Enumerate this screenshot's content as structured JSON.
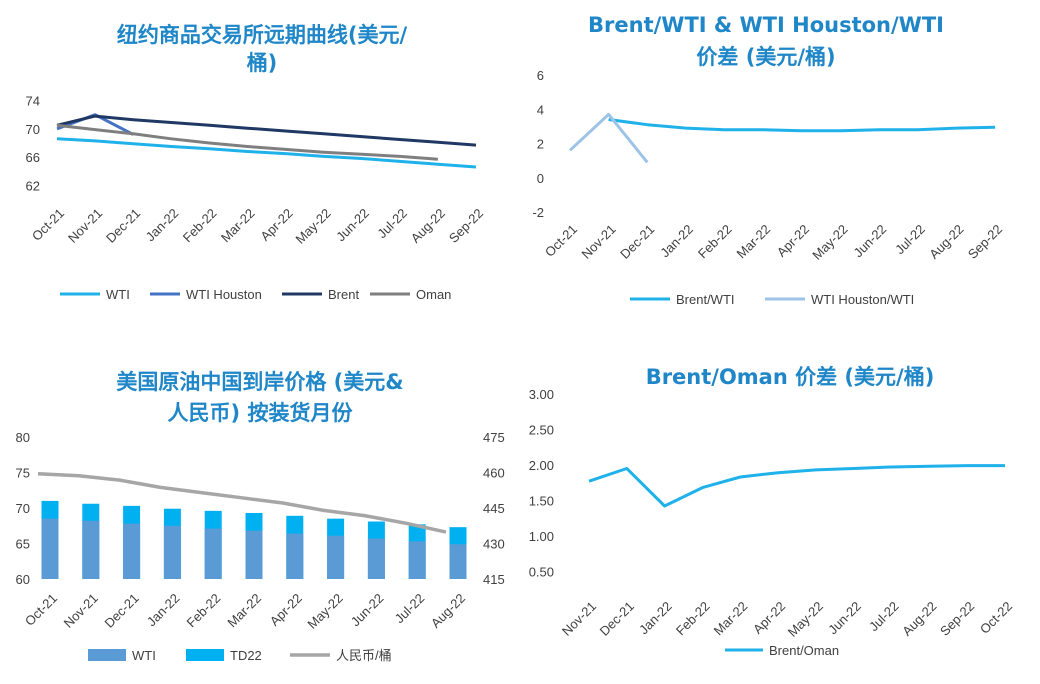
{
  "colors": {
    "wti": "#1fb1ea",
    "wti_houston": "#4472c4",
    "brent": "#1f3864",
    "oman": "#7f7f7f",
    "light_blue": "#9dc3e6",
    "bar_wti": "#5b9bd5",
    "bar_td22": "#00b0f0",
    "title": "#1f86c8"
  },
  "chart_data": [
    {
      "type": "line",
      "title_lines": [
        "纽约商品交易所远期曲线(美元/",
        "桶)"
      ],
      "categories": [
        "Oct-21",
        "Nov-21",
        "Dec-21",
        "Jan-22",
        "Feb-22",
        "Mar-22",
        "Apr-22",
        "May-22",
        "Jun-22",
        "Jul-22",
        "Aug-22",
        "Sep-22"
      ],
      "y_ticks": [
        "74",
        "70",
        "66",
        "62"
      ],
      "ylim": [
        60.5,
        75.5
      ],
      "series": [
        {
          "name": "WTI",
          "color_key": "wti",
          "values": [
            68.6,
            68.3,
            67.9,
            67.5,
            67.2,
            66.8,
            66.5,
            66.1,
            65.8,
            65.4,
            65.0,
            64.6
          ]
        },
        {
          "name": "WTI Houston",
          "color_key": "wti_houston",
          "values": [
            70.0,
            72.0,
            69.2,
            null,
            null,
            null,
            null,
            null,
            null,
            null,
            null,
            null
          ]
        },
        {
          "name": "Brent",
          "color_key": "brent",
          "values": [
            70.5,
            71.8,
            71.3,
            70.9,
            70.5,
            70.1,
            69.7,
            69.3,
            68.9,
            68.5,
            68.1,
            67.7
          ]
        },
        {
          "name": "Oman",
          "color_key": "oman",
          "values": [
            70.5,
            69.9,
            69.3,
            68.6,
            68.0,
            67.5,
            67.1,
            66.7,
            66.4,
            66.1,
            65.7,
            null
          ]
        }
      ],
      "legend": [
        "WTI",
        "WTI Houston",
        "Brent",
        "Oman"
      ]
    },
    {
      "type": "line",
      "title_lines": [
        "Brent/WTI & WTI Houston/WTI",
        "价差 (美元/桶)"
      ],
      "categories": [
        "Oct-21",
        "Nov-21",
        "Dec-21",
        "Jan-22",
        "Feb-22",
        "Mar-22",
        "Apr-22",
        "May-22",
        "Jun-22",
        "Jul-22",
        "Aug-22",
        "Sep-22"
      ],
      "y_ticks": [
        "6",
        "4",
        "2",
        "0",
        "-2"
      ],
      "ylim": [
        -2,
        6
      ],
      "series": [
        {
          "name": "Brent/WTI",
          "color_key": "wti",
          "values": [
            null,
            3.4,
            3.1,
            2.9,
            2.8,
            2.8,
            2.75,
            2.75,
            2.8,
            2.8,
            2.9,
            2.95
          ]
        },
        {
          "name": "WTI Houston/WTI",
          "color_key": "light_blue",
          "values": [
            1.6,
            3.7,
            0.9,
            null,
            null,
            null,
            null,
            null,
            null,
            null,
            null,
            null
          ]
        }
      ],
      "legend": [
        "Brent/WTI",
        "WTI Houston/WTI"
      ]
    },
    {
      "type": "bar",
      "title_lines": [
        "美国原油中国到岸价格 (美元&",
        "人民币) 按装货月份"
      ],
      "categories": [
        "Oct-21",
        "Nov-21",
        "Dec-21",
        "Jan-22",
        "Feb-22",
        "Mar-22",
        "Apr-22",
        "May-22",
        "Jun-22",
        "Jul-22",
        "Aug-22"
      ],
      "y_ticks": [
        "80",
        "75",
        "70",
        "65",
        "60"
      ],
      "ylim": [
        60,
        80
      ],
      "y2_ticks": [
        "475",
        "460",
        "445",
        "430",
        "415"
      ],
      "y2lim": [
        415,
        475
      ],
      "series": [
        {
          "name": "WTI",
          "color_key": "bar_wti",
          "values": [
            68.5,
            68.2,
            67.8,
            67.5,
            67.1,
            66.8,
            66.4,
            66.1,
            65.7,
            65.3,
            64.9
          ]
        },
        {
          "name": "TD22",
          "color_key": "bar_td22",
          "values": [
            71.0,
            70.6,
            70.3,
            69.9,
            69.6,
            69.3,
            68.9,
            68.5,
            68.1,
            67.7,
            67.3
          ]
        },
        {
          "name": "人民币/桶",
          "axis": "secondary",
          "color_key": "light_gray",
          "values": [
            459.5,
            458.6,
            456.8,
            453.7,
            451.5,
            449.3,
            447.1,
            444.0,
            441.8,
            438.6,
            434.8
          ]
        }
      ],
      "legend": [
        "WTI",
        "TD22",
        "人民币/桶"
      ]
    },
    {
      "type": "line",
      "title_lines": [
        "Brent/Oman 价差 (美元/桶)"
      ],
      "categories": [
        "Nov-21",
        "Dec-21",
        "Jan-22",
        "Feb-22",
        "Mar-22",
        "Apr-22",
        "May-22",
        "Jun-22",
        "Jul-22",
        "Aug-22",
        "Sep-22",
        "Oct-22"
      ],
      "y_ticks": [
        "3.00",
        "2.50",
        "2.00",
        "1.50",
        "1.00",
        "0.50"
      ],
      "ylim": [
        0.25,
        3.0
      ],
      "series": [
        {
          "name": "Brent/Oman",
          "color_key": "wti",
          "values": [
            1.77,
            1.95,
            1.42,
            1.68,
            1.83,
            1.89,
            1.93,
            1.95,
            1.97,
            1.98,
            1.99,
            1.99
          ]
        }
      ],
      "legend": [
        "Brent/Oman"
      ]
    }
  ]
}
